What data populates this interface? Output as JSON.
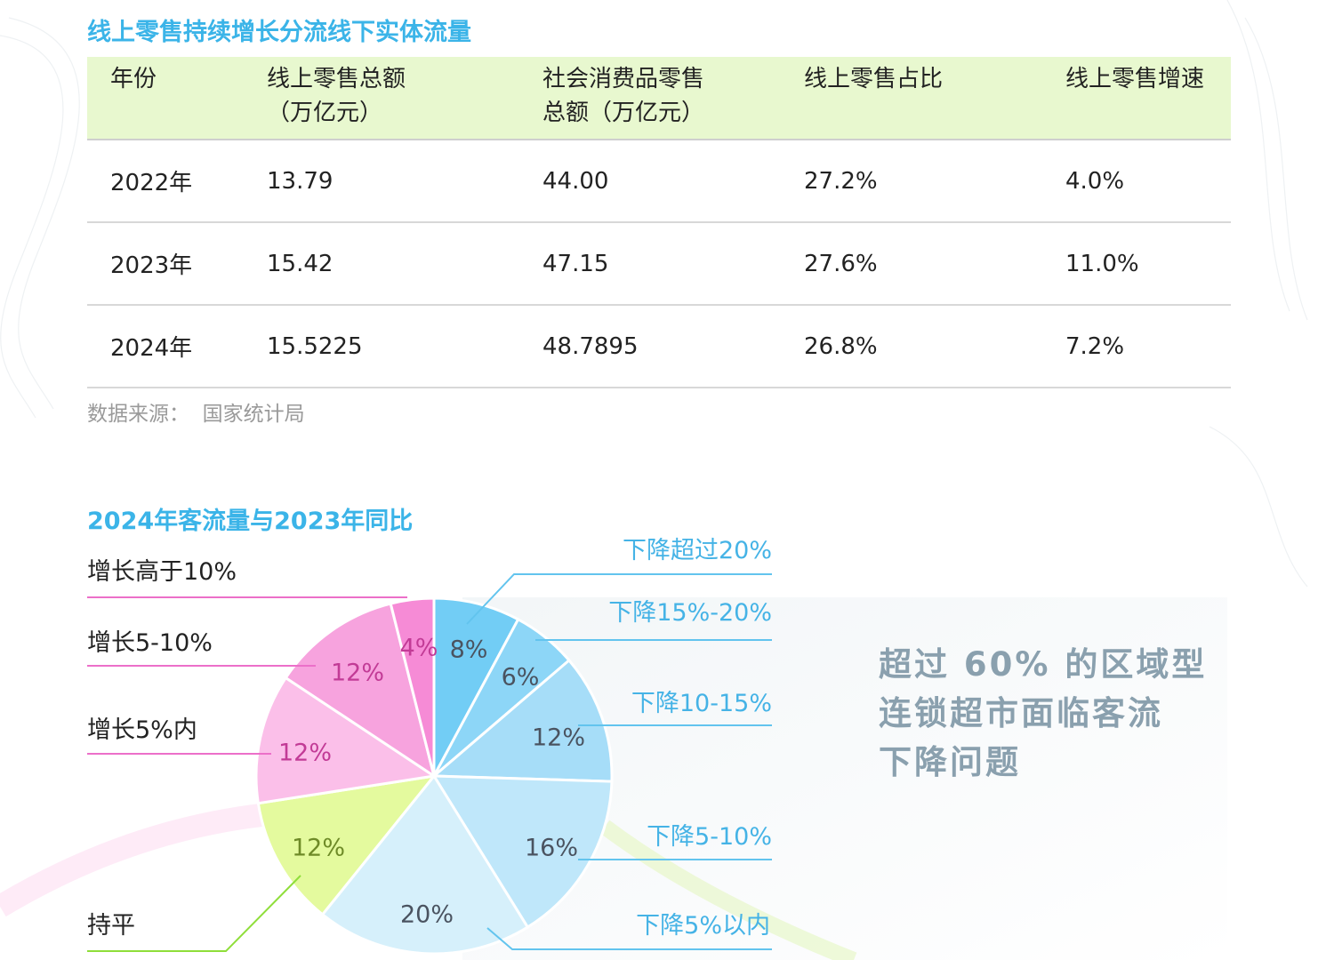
{
  "table_section": {
    "title": "线上零售持续增长分流线下实体流量",
    "headers": [
      "年份",
      "线上零售总额\n（万亿元）",
      "社会消费品零售\n总额（万亿元）",
      "线上零售占比",
      "线上零售增速"
    ],
    "rows": [
      [
        "2022年",
        "13.79",
        "44.00",
        "27.2%",
        "4.0%"
      ],
      [
        "2023年",
        "15.42",
        "47.15",
        "27.6%",
        "11.0%"
      ],
      [
        "2024年",
        "15.5225",
        "48.7895",
        "26.8%",
        "7.2%"
      ]
    ],
    "source": "数据来源：  国家统计局"
  },
  "pie_section": {
    "title": "2024年客流量与2023年同比",
    "callout": "超过 60% 的区域型\n连锁超市面临客流\n下降问题"
  },
  "chart_data": {
    "type": "pie",
    "title": "2024年客流量与2023年同比",
    "slices": [
      {
        "label": "下降超过20%",
        "value": 8,
        "pct_label": "8%",
        "color": "#72cdf5"
      },
      {
        "label": "下降15%-20%",
        "value": 6,
        "pct_label": "6%",
        "color": "#8dd6f7"
      },
      {
        "label": "下降10-15%",
        "value": 12,
        "pct_label": "12%",
        "color": "#a6ddf8"
      },
      {
        "label": "下降5-10%",
        "value": 16,
        "pct_label": "16%",
        "color": "#bfe7fa"
      },
      {
        "label": "下降5%以内",
        "value": 20,
        "pct_label": "20%",
        "color": "#d6f0fb"
      },
      {
        "label": "持平",
        "value": 12,
        "pct_label": "12%",
        "color": "#e4fa9e"
      },
      {
        "label": "增长5%内",
        "value": 12,
        "pct_label": "12%",
        "color": "#fbbfe9"
      },
      {
        "label": "增长5-10%",
        "value": 12,
        "pct_label": "12%",
        "color": "#f7a3de"
      },
      {
        "label": "增长高于10%",
        "value": 4,
        "pct_label": "4%",
        "color": "#f68bd6"
      }
    ],
    "start_angle": "12 o'clock",
    "direction": "clockwise"
  }
}
